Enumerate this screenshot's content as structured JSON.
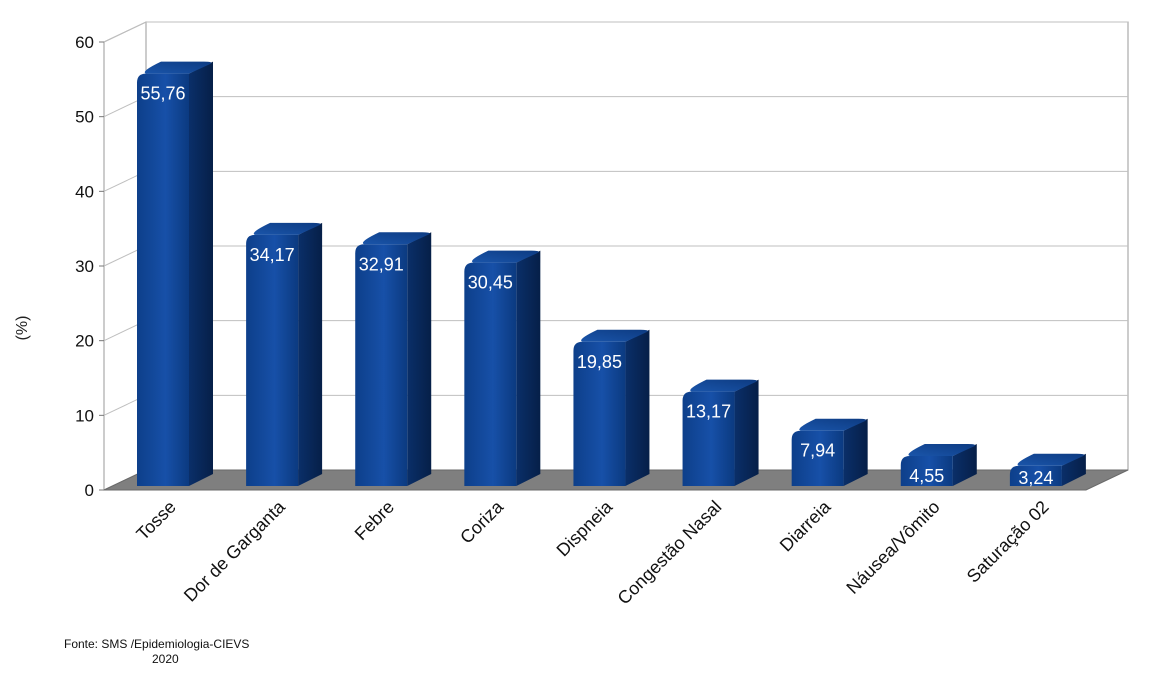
{
  "chart_data": {
    "type": "bar",
    "categories": [
      "Tosse",
      "Dor de Garganta",
      "Febre",
      "Coriza",
      "Dispneia",
      "Congestão Nasal",
      "Diarreia",
      "Náusea/Vômito",
      "Saturação 02"
    ],
    "values": [
      55.76,
      34.17,
      32.91,
      30.45,
      19.85,
      13.17,
      7.94,
      4.55,
      3.24
    ],
    "value_labels": [
      "55,76",
      "34,17",
      "32,91",
      "30,45",
      "19,85",
      "13,17",
      "7,94",
      "4,55",
      "3,24"
    ],
    "title": "",
    "xlabel": "",
    "ylabel": "(%)",
    "ylim": [
      0,
      60
    ],
    "yticks": [
      0,
      10,
      20,
      30,
      40,
      50,
      60
    ],
    "grid": true,
    "style": "3d",
    "colors": {
      "bar_front": "#0b3f8c",
      "bar_side": "#082a5e",
      "bar_top": "#1a54a8",
      "floor": "#7f7f7f",
      "grid": "#bfbfbf"
    }
  },
  "source": {
    "line1": "Fonte: SMS /Epidemiologia-CIEVS",
    "line2": "2020"
  }
}
